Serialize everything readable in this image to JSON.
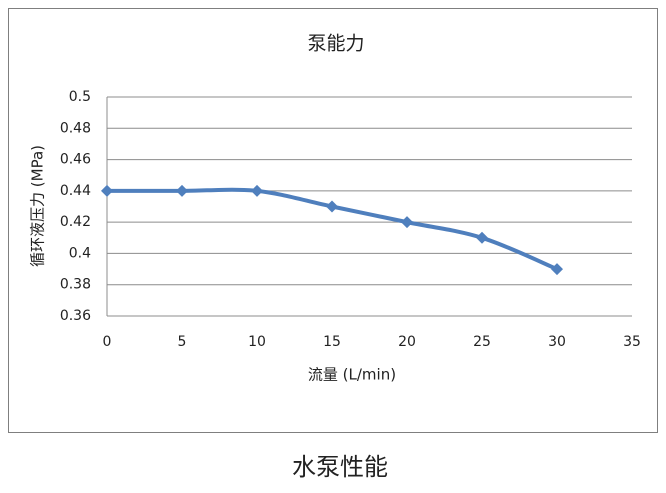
{
  "chart_data": {
    "type": "line",
    "title": "泵能力",
    "x_label": "流量 (L/min)",
    "y_label": "循环液压力 (MPa)",
    "x": [
      0,
      5,
      10,
      15,
      20,
      25,
      30
    ],
    "series": [
      {
        "name": "泵能力",
        "color": "#4f7fbd",
        "values": [
          0.44,
          0.44,
          0.44,
          0.43,
          0.42,
          0.41,
          0.39
        ]
      }
    ],
    "xlim": [
      0,
      35
    ],
    "xticks": [
      0,
      5,
      10,
      15,
      20,
      25,
      30,
      35
    ],
    "ylim": [
      0.36,
      0.5
    ],
    "yticks": [
      0.36,
      0.38,
      0.4,
      0.42,
      0.44,
      0.46,
      0.48,
      0.5
    ],
    "grid": true
  },
  "caption": "水泵性能"
}
